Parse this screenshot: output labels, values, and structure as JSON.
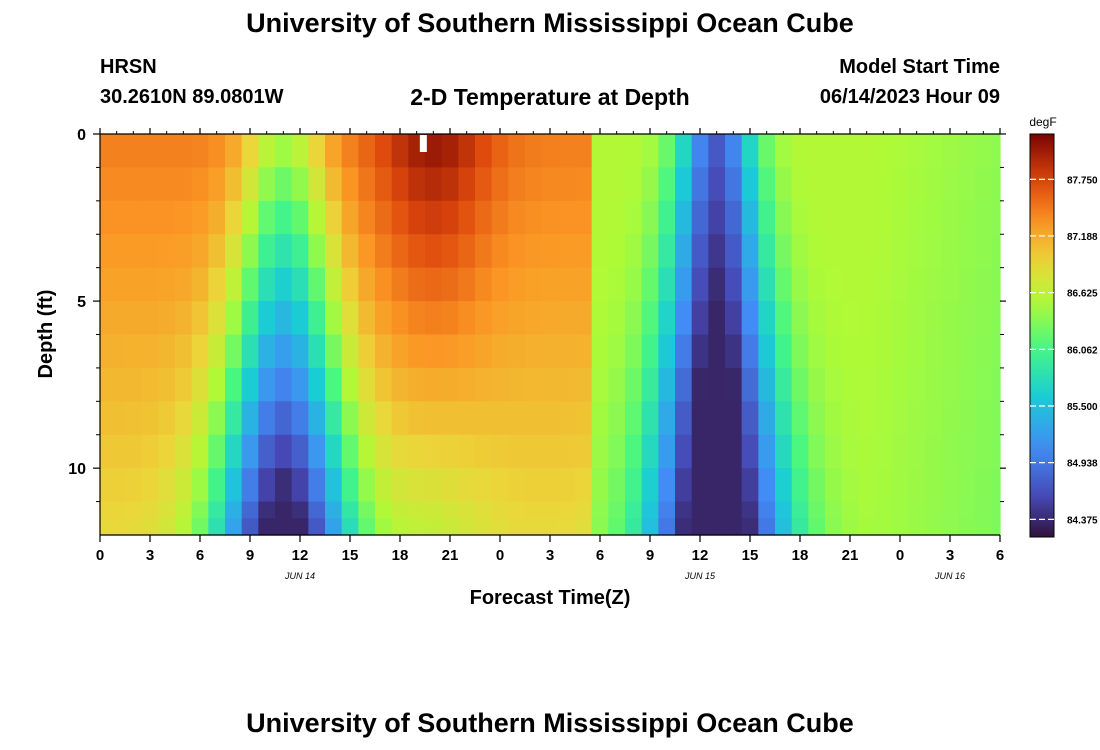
{
  "title": "University of Southern Mississippi Ocean Cube",
  "footer_title": "University of Southern Mississippi Ocean Cube",
  "station": {
    "name": "HRSN",
    "coords": "30.2610N  89.0801W"
  },
  "model": {
    "label": "Model Start Time",
    "time": "06/14/2023 Hour 09"
  },
  "chart_data": {
    "type": "heatmap",
    "title": "2-D Temperature at Depth",
    "xlabel": "Forecast Time(Z)",
    "ylabel": "Depth (ft)",
    "colorbar_label": "degF",
    "colorbar_ticks": [
      "87.750",
      "87.188",
      "86.625",
      "86.062",
      "85.500",
      "84.938",
      "84.375"
    ],
    "colorbar_values": [
      87.75,
      87.188,
      86.625,
      86.062,
      85.5,
      84.938,
      84.375
    ],
    "color_range": [
      84.2,
      88.2
    ],
    "xlim": [
      0,
      54
    ],
    "ylim": [
      0,
      12
    ],
    "x_ticks": [
      0,
      3,
      6,
      9,
      12,
      15,
      18,
      21,
      24,
      27,
      30,
      33,
      36,
      39,
      42,
      45,
      48,
      51,
      54
    ],
    "x_tick_labels": [
      "0",
      "3",
      "6",
      "9",
      "12",
      "15",
      "18",
      "21",
      "0",
      "3",
      "6",
      "9",
      "12",
      "15",
      "18",
      "21",
      "0",
      "3",
      "6"
    ],
    "y_ticks": [
      0,
      5,
      10
    ],
    "y_tick_labels": [
      "0",
      "5",
      "10"
    ],
    "date_labels": [
      {
        "text": "JUN 14",
        "x": 12
      },
      {
        "text": "JUN 15",
        "x": 36
      },
      {
        "text": "JUN 16",
        "x": 51
      }
    ],
    "depth_rows": [
      {
        "top": 0,
        "bottom": 1
      },
      {
        "top": 1,
        "bottom": 2
      },
      {
        "top": 2,
        "bottom": 3
      },
      {
        "top": 3,
        "bottom": 4
      },
      {
        "top": 4,
        "bottom": 5
      },
      {
        "top": 5,
        "bottom": 6
      },
      {
        "top": 6,
        "bottom": 7
      },
      {
        "top": 7,
        "bottom": 8
      },
      {
        "top": 8,
        "bottom": 9
      },
      {
        "top": 9,
        "bottom": 10
      },
      {
        "top": 10,
        "bottom": 11
      },
      {
        "top": 11,
        "bottom": 11.5
      },
      {
        "top": 11.5,
        "bottom": 12
      }
    ],
    "time_steps": 55
  }
}
